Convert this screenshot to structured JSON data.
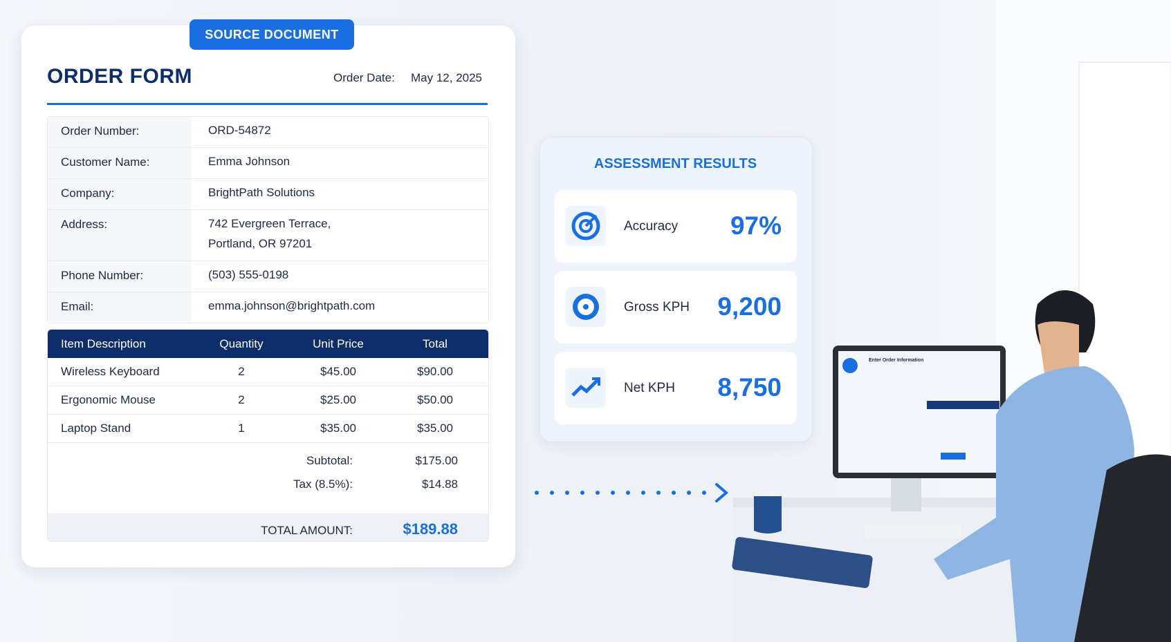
{
  "badge": "SOURCE DOCUMENT",
  "form": {
    "title": "ORDER FORM",
    "date_label": "Order Date:",
    "date": "May 12, 2025",
    "fields": [
      {
        "label": "Order Number:",
        "lines": [
          "ORD-54872"
        ]
      },
      {
        "label": "Customer Name:",
        "lines": [
          "Emma Johnson"
        ]
      },
      {
        "label": "Company:",
        "lines": [
          "BrightPath Solutions"
        ]
      },
      {
        "label": "Address:",
        "lines": [
          "742 Evergreen Terrace,",
          "Portland, OR 97201"
        ]
      },
      {
        "label": "Phone Number:",
        "lines": [
          "(503) 555-0198"
        ]
      },
      {
        "label": "Email:",
        "lines": [
          "emma.johnson@brightpath.com"
        ]
      }
    ],
    "items": {
      "header": [
        "Item Description",
        "Quantity",
        "Unit Price",
        "Total"
      ],
      "rows": [
        [
          "Wireless Keyboard",
          "2",
          "$45.00",
          "$90.00"
        ],
        [
          "Ergonomic Mouse",
          "2",
          "$25.00",
          "$50.00"
        ],
        [
          "Laptop Stand",
          "1",
          "$35.00",
          "$35.00"
        ]
      ]
    },
    "summary": [
      {
        "label": "Subtotal:",
        "value": "$175.00"
      },
      {
        "label": "Tax (8.5%):",
        "value": "$14.88"
      }
    ],
    "total": {
      "label": "TOTAL AMOUNT:",
      "value": "$189.88"
    }
  },
  "results": {
    "title": "ASSESSMENT RESULTS",
    "metrics": [
      {
        "label": "Accuracy",
        "value": "97%"
      },
      {
        "label": "Gross KPH",
        "value": "9,200"
      },
      {
        "label": "Net KPH",
        "value": "8,750"
      }
    ]
  },
  "monitor": {
    "title": "Enter Order Information"
  }
}
